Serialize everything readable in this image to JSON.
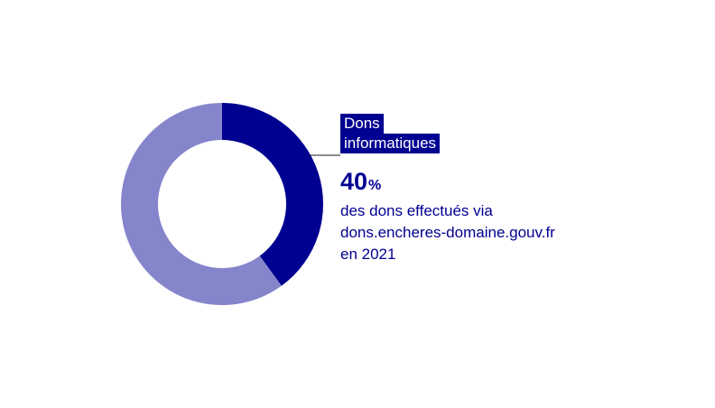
{
  "chart_data": {
    "type": "pie",
    "variant": "donut",
    "slices": [
      {
        "label": "Dons informatiques",
        "value": 40,
        "color": "#000091"
      },
      {
        "label": "",
        "value": 60,
        "color": "#8585cc"
      }
    ],
    "annotation": {
      "tag_lines": [
        "Dons",
        "informatiques"
      ],
      "value": "40",
      "unit": "%",
      "description_lines": [
        "des dons effectués via",
        "dons.encheres-domaine.gouv.fr",
        "en 2021"
      ]
    }
  }
}
